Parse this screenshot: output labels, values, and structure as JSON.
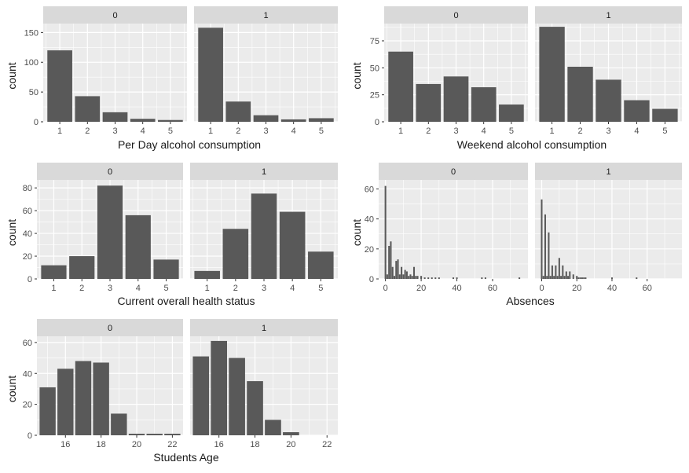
{
  "colors": {
    "panel_bg": "#EBEBEB",
    "strip_bg": "#D9D9D9",
    "bar": "#595959",
    "grid": "#FFFFFF",
    "text": "#1A1A1A",
    "tick_text": "#4D4D4D"
  },
  "chart_data": [
    {
      "id": "dalc",
      "type": "bar",
      "xlabel": "Per Day alcohol consumption",
      "ylabel": "count",
      "ylim": [
        0,
        165
      ],
      "yticks": [
        0,
        50,
        100,
        150
      ],
      "xlim": [
        0.4,
        5.6
      ],
      "xticks": [
        1,
        2,
        3,
        4,
        5
      ],
      "bar_width": 0.9,
      "facets": [
        {
          "label": "0",
          "x": [
            1,
            2,
            3,
            4,
            5
          ],
          "y": [
            120,
            43,
            16,
            5,
            3
          ]
        },
        {
          "label": "1",
          "x": [
            1,
            2,
            3,
            4,
            5
          ],
          "y": [
            158,
            34,
            11,
            4,
            6
          ]
        }
      ]
    },
    {
      "id": "walc",
      "type": "bar",
      "xlabel": "Weekend alcohol consumption",
      "ylabel": "count",
      "ylim": [
        0,
        91
      ],
      "yticks": [
        0,
        25,
        50,
        75
      ],
      "xlim": [
        0.4,
        5.6
      ],
      "xticks": [
        1,
        2,
        3,
        4,
        5
      ],
      "bar_width": 0.9,
      "facets": [
        {
          "label": "0",
          "x": [
            1,
            2,
            3,
            4,
            5
          ],
          "y": [
            65,
            35,
            42,
            32,
            16
          ]
        },
        {
          "label": "1",
          "x": [
            1,
            2,
            3,
            4,
            5
          ],
          "y": [
            88,
            51,
            39,
            20,
            12
          ]
        }
      ]
    },
    {
      "id": "health",
      "type": "bar",
      "xlabel": "Current overall health status",
      "ylabel": "count",
      "ylim": [
        0,
        87
      ],
      "yticks": [
        0,
        20,
        40,
        60,
        80
      ],
      "xlim": [
        0.4,
        5.6
      ],
      "xticks": [
        1,
        2,
        3,
        4,
        5
      ],
      "bar_width": 0.9,
      "facets": [
        {
          "label": "0",
          "x": [
            1,
            2,
            3,
            4,
            5
          ],
          "y": [
            12,
            20,
            82,
            56,
            17
          ]
        },
        {
          "label": "1",
          "x": [
            1,
            2,
            3,
            4,
            5
          ],
          "y": [
            7,
            44,
            75,
            59,
            24
          ]
        }
      ]
    },
    {
      "id": "absences",
      "type": "bar",
      "xlabel": "Absences",
      "ylabel": "count",
      "ylim": [
        0,
        66
      ],
      "yticks": [
        0,
        20,
        40,
        60
      ],
      "xlim": [
        -3.8,
        79.8
      ],
      "xticks": [
        0,
        20,
        40,
        60
      ],
      "bar_width": 0.9,
      "facets": [
        {
          "label": "0",
          "x": [
            0,
            1,
            2,
            3,
            4,
            5,
            6,
            7,
            8,
            9,
            10,
            11,
            12,
            13,
            14,
            15,
            16,
            17,
            18,
            20,
            22,
            24,
            26,
            28,
            30,
            38,
            40,
            54,
            56,
            75
          ],
          "y": [
            62,
            3,
            22,
            25,
            8,
            2,
            12,
            13,
            3,
            8,
            3,
            6,
            5,
            2,
            3,
            2,
            8,
            2,
            2,
            2,
            1,
            1,
            1,
            1,
            1,
            1,
            1,
            1,
            1,
            1
          ]
        },
        {
          "label": "1",
          "x": [
            0,
            1,
            2,
            3,
            4,
            5,
            6,
            7,
            8,
            9,
            10,
            11,
            12,
            13,
            14,
            15,
            16,
            18,
            20,
            21,
            22,
            23,
            24,
            25,
            40,
            54
          ],
          "y": [
            53,
            2,
            43,
            2,
            31,
            2,
            9,
            2,
            9,
            2,
            14,
            2,
            9,
            2,
            5,
            2,
            5,
            3,
            2,
            1,
            1,
            1,
            1,
            1,
            1,
            1
          ]
        }
      ]
    },
    {
      "id": "age",
      "type": "bar",
      "xlabel": "Students Age",
      "ylabel": "count",
      "ylim": [
        0,
        64
      ],
      "yticks": [
        0,
        20,
        40,
        60
      ],
      "xlim": [
        14.4,
        22.6
      ],
      "xticks": [
        16,
        18,
        20,
        22
      ],
      "bar_width": 0.9,
      "facets": [
        {
          "label": "0",
          "x": [
            15,
            16,
            17,
            18,
            19,
            20,
            21,
            22
          ],
          "y": [
            31,
            43,
            48,
            47,
            14,
            1,
            1,
            1
          ]
        },
        {
          "label": "1",
          "x": [
            15,
            16,
            17,
            18,
            19,
            20,
            21,
            22
          ],
          "y": [
            51,
            61,
            50,
            35,
            10,
            2,
            0,
            0
          ]
        }
      ]
    }
  ]
}
